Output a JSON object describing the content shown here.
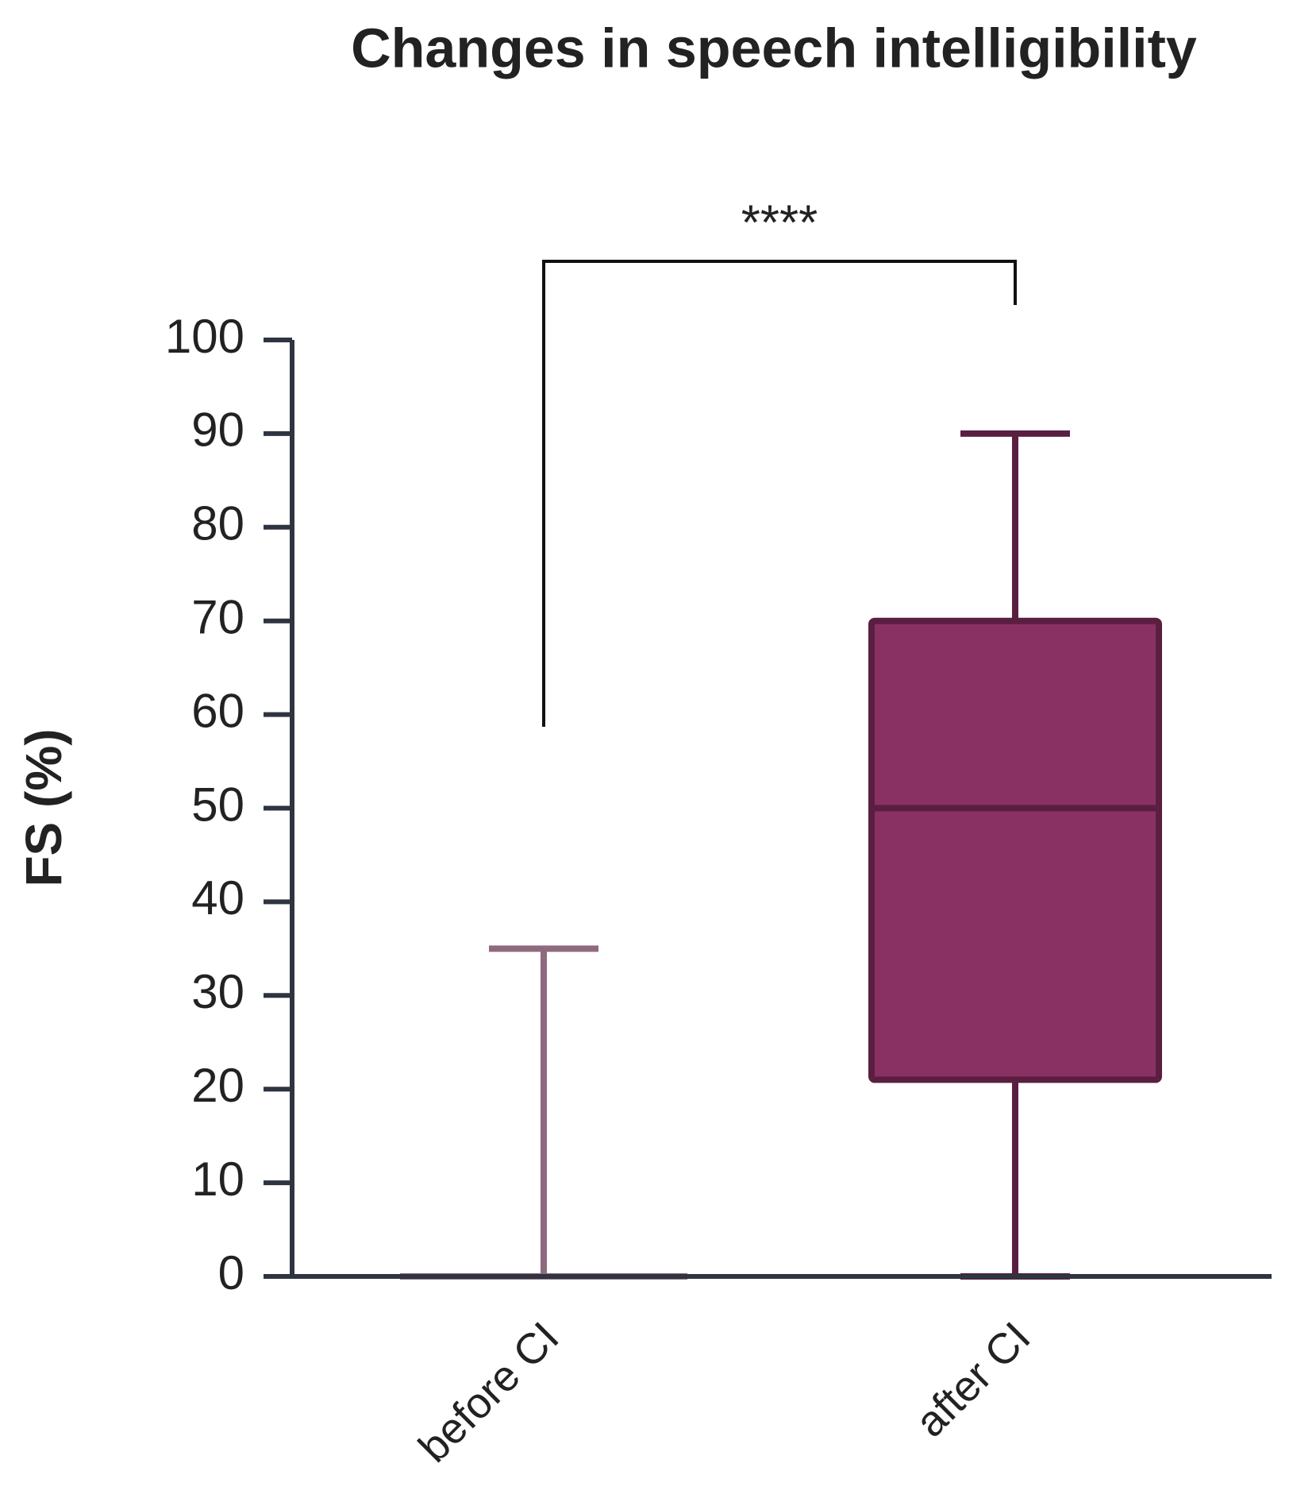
{
  "chart_data": {
    "type": "box",
    "title": "Changes in speech intelligibility",
    "y_label": "FS (%)",
    "categories": [
      "before CI",
      "after CI"
    ],
    "boxes": [
      {
        "min": 0,
        "q1": 0,
        "median": 0,
        "q3": 0,
        "max": 35,
        "color": "#8f6a7e",
        "edge": "#8f6a7e"
      },
      {
        "min": 0,
        "q1": 21,
        "median": 50,
        "q3": 70,
        "max": 90,
        "color": "#8a3163",
        "edge": "#5a1f40"
      }
    ],
    "annotation": "****",
    "ylim": [
      0,
      100
    ],
    "yticks": [
      0,
      10,
      20,
      30,
      40,
      50,
      60,
      70,
      80,
      90,
      100
    ]
  }
}
